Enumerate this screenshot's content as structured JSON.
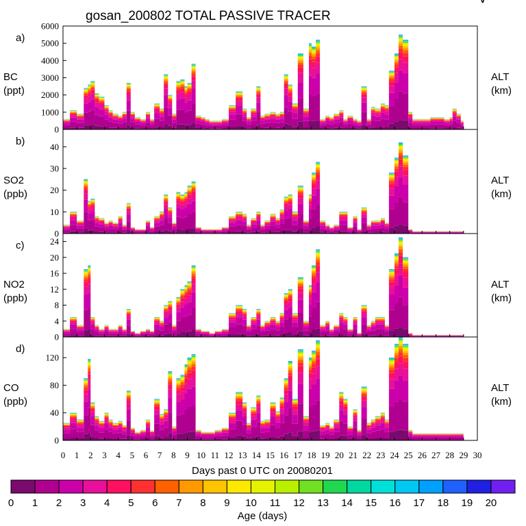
{
  "chart_data": {
    "type": "area",
    "title": "gosan_200802 TOTAL PASSIVE TRACER",
    "xlabel": "Days past 0 UTC on 20080201",
    "xlim": [
      0,
      30
    ],
    "x_ticks": [
      "0",
      "1",
      "2",
      "3",
      "4",
      "5",
      "6",
      "7",
      "8",
      "9",
      "10",
      "11",
      "12",
      "13",
      "14",
      "15",
      "16",
      "17",
      "18",
      "19",
      "20",
      "21",
      "22",
      "23",
      "24",
      "25",
      "26",
      "27",
      "28",
      "29",
      "30"
    ],
    "x": [
      0,
      0.5,
      1,
      1.5,
      1.8,
      2,
      2.3,
      2.6,
      3,
      3.3,
      3.6,
      4,
      4.3,
      4.6,
      4.9,
      5.2,
      5.6,
      6,
      6.3,
      6.6,
      7,
      7.3,
      7.6,
      7.9,
      8.2,
      8.5,
      8.8,
      9,
      9.3,
      9.6,
      10,
      10.3,
      10.6,
      11,
      11.5,
      12,
      12.5,
      13,
      13.3,
      13.6,
      14,
      14.3,
      14.6,
      15,
      15.4,
      15.7,
      16,
      16.3,
      16.6,
      17,
      17.4,
      17.8,
      18,
      18.3,
      18.6,
      19,
      19.3,
      19.6,
      20,
      20.3,
      20.6,
      21,
      21.3,
      21.6,
      22,
      22.3,
      22.6,
      23,
      23.3,
      23.6,
      24,
      24.3,
      24.6,
      25,
      25.3,
      25.6,
      26,
      26.3,
      26.6,
      27,
      27.3,
      27.6,
      28,
      28.2,
      28.5,
      28.8,
      29
    ],
    "panels": [
      {
        "tag": "a)",
        "species": "BC",
        "unit": "(ppt)",
        "right_label": "ALT",
        "right_unit": "(km)",
        "ylim": [
          0,
          6000
        ],
        "yticks": [
          0,
          1000,
          2000,
          3000,
          4000,
          5000,
          6000
        ],
        "totals": [
          600,
          1100,
          900,
          2400,
          2600,
          2800,
          2100,
          1900,
          1400,
          1100,
          900,
          800,
          1000,
          2700,
          1000,
          700,
          600,
          1000,
          600,
          1500,
          1200,
          3200,
          2000,
          900,
          2800,
          2900,
          2500,
          2700,
          3800,
          800,
          700,
          600,
          500,
          500,
          600,
          1400,
          2200,
          1200,
          700,
          1200,
          2500,
          800,
          900,
          1000,
          900,
          1000,
          3200,
          2600,
          1500,
          4400,
          1200,
          5000,
          4800,
          5200,
          600,
          800,
          700,
          900,
          1100,
          600,
          800,
          600,
          500,
          2500,
          600,
          1300,
          1200,
          1500,
          1400,
          3400,
          4400,
          5500,
          5200,
          1000,
          600,
          600,
          600,
          600,
          700,
          700,
          700,
          600,
          700,
          1200,
          900,
          500,
          300,
          0
        ]
      },
      {
        "tag": "b)",
        "species": "SO2",
        "unit": "(ppb)",
        "right_label": "ALT",
        "right_unit": "(km)",
        "ylim": [
          0,
          48
        ],
        "yticks": [
          0,
          10,
          20,
          30,
          40
        ],
        "totals": [
          4,
          10,
          6,
          25,
          15,
          16,
          8,
          7,
          5,
          6,
          5,
          8,
          4,
          14,
          3,
          2,
          2,
          6,
          3,
          8,
          10,
          18,
          12,
          5,
          19,
          18,
          19,
          22,
          24,
          3,
          2,
          2,
          2,
          2,
          3,
          8,
          10,
          9,
          4,
          7,
          10,
          4,
          6,
          9,
          7,
          11,
          17,
          18,
          10,
          22,
          6,
          18,
          28,
          33,
          6,
          4,
          3,
          4,
          10,
          10,
          3,
          8,
          2,
          12,
          4,
          6,
          6,
          7,
          5,
          28,
          35,
          42,
          36,
          2,
          1,
          1,
          1,
          1,
          1,
          1,
          1,
          1,
          1,
          1,
          1,
          1,
          1,
          0
        ]
      },
      {
        "tag": "c)",
        "species": "NO2",
        "unit": "(ppb)",
        "right_label": "ALT",
        "right_unit": "(km)",
        "ylim": [
          0,
          26
        ],
        "yticks": [
          0,
          4,
          8,
          12,
          16,
          20,
          24
        ],
        "totals": [
          2,
          5,
          3,
          17,
          18,
          5,
          3,
          2,
          3,
          2,
          2,
          3,
          2,
          7,
          1.5,
          1,
          1.5,
          2,
          1.5,
          5,
          4,
          8,
          9,
          3,
          10,
          12,
          13,
          14,
          18,
          2,
          1.5,
          1.5,
          1,
          1.5,
          2,
          6,
          8,
          7,
          3,
          5,
          7,
          3,
          4,
          5,
          4,
          6,
          11,
          12,
          6,
          15,
          4,
          13,
          18,
          22,
          3,
          4,
          2,
          3,
          6,
          5,
          2,
          5,
          1,
          8,
          3,
          4,
          5,
          5,
          3,
          17,
          21,
          25,
          20,
          1,
          0.5,
          0.5,
          0.5,
          0.5,
          0.5,
          0.5,
          0.5,
          0.5,
          0.5,
          0.5,
          0.5,
          0.5,
          0.5,
          0
        ]
      },
      {
        "tag": "d)",
        "species": "CO",
        "unit": "(ppb)",
        "right_label": "ALT",
        "right_unit": "(km)",
        "ylim": [
          0,
          150
        ],
        "yticks": [
          0,
          40,
          80,
          120
        ],
        "totals": [
          25,
          40,
          30,
          90,
          118,
          55,
          35,
          28,
          40,
          30,
          25,
          28,
          22,
          72,
          18,
          12,
          15,
          30,
          14,
          60,
          38,
          45,
          100,
          20,
          90,
          95,
          110,
          120,
          125,
          15,
          12,
          12,
          12,
          15,
          18,
          40,
          70,
          55,
          25,
          48,
          65,
          28,
          30,
          55,
          42,
          62,
          90,
          115,
          60,
          132,
          35,
          120,
          130,
          145,
          22,
          25,
          20,
          30,
          70,
          60,
          20,
          45,
          15,
          78,
          25,
          30,
          35,
          40,
          30,
          120,
          140,
          150,
          140,
          15,
          10,
          10,
          10,
          10,
          10,
          10,
          10,
          10,
          10,
          10,
          10,
          10,
          10,
          0
        ]
      }
    ],
    "colorbar": {
      "label": "Age (days)",
      "ticks": [
        "0",
        "1",
        "2",
        "3",
        "4",
        "5",
        "6",
        "7",
        "8",
        "9",
        "10",
        "11",
        "12",
        "13",
        "14",
        "15",
        "16",
        "17",
        "18",
        "19",
        "20"
      ],
      "colors": [
        "#7a0a6e",
        "#b0008f",
        "#cc00aa",
        "#e8109a",
        "#ff1060",
        "#ff3030",
        "#ff6000",
        "#ff9900",
        "#ffc400",
        "#ffe800",
        "#e4f200",
        "#b8f000",
        "#70e020",
        "#20d850",
        "#00d8a0",
        "#00e0d8",
        "#00c8f0",
        "#00a0ff",
        "#2060ff",
        "#2020e0",
        "#7020f0"
      ]
    }
  }
}
